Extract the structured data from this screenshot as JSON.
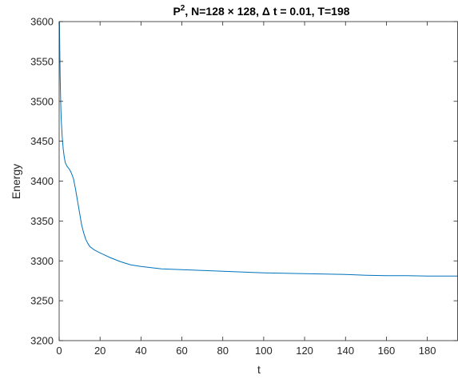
{
  "chart_data": {
    "type": "line",
    "title": {
      "part1": "P",
      "superscript": "2",
      "part2": ", N=128 × 128, Δ t = 0.01, T=198"
    },
    "xlabel": "t",
    "ylabel": "Energy",
    "xlim": [
      0,
      195
    ],
    "ylim": [
      3200,
      3600
    ],
    "xticks": [
      0,
      20,
      40,
      60,
      80,
      100,
      120,
      140,
      160,
      180
    ],
    "yticks": [
      3200,
      3250,
      3300,
      3350,
      3400,
      3450,
      3500,
      3550,
      3600
    ],
    "grid": false,
    "legend": "none",
    "series": [
      {
        "color": "#0072BD",
        "x": [
          0.15,
          0.3,
          0.5,
          0.75,
          1,
          1.5,
          2,
          2.5,
          3,
          4,
          5,
          6,
          7,
          8,
          9,
          10,
          11,
          12,
          13,
          14,
          15,
          17,
          20,
          25,
          30,
          35,
          40,
          50,
          60,
          70,
          80,
          90,
          100,
          110,
          120,
          130,
          140,
          145,
          150,
          160,
          170,
          180,
          190,
          195
        ],
        "y": [
          3600,
          3565,
          3530,
          3500,
          3478,
          3455,
          3440,
          3430,
          3423,
          3418,
          3415,
          3410,
          3403,
          3390,
          3375,
          3360,
          3345,
          3335,
          3327,
          3322,
          3318,
          3314,
          3310,
          3304,
          3299,
          3295,
          3293,
          3290,
          3289,
          3288,
          3287,
          3286,
          3285,
          3284.5,
          3284,
          3283.5,
          3283,
          3282.5,
          3282,
          3281.5,
          3281.5,
          3281,
          3281,
          3281
        ]
      }
    ]
  }
}
